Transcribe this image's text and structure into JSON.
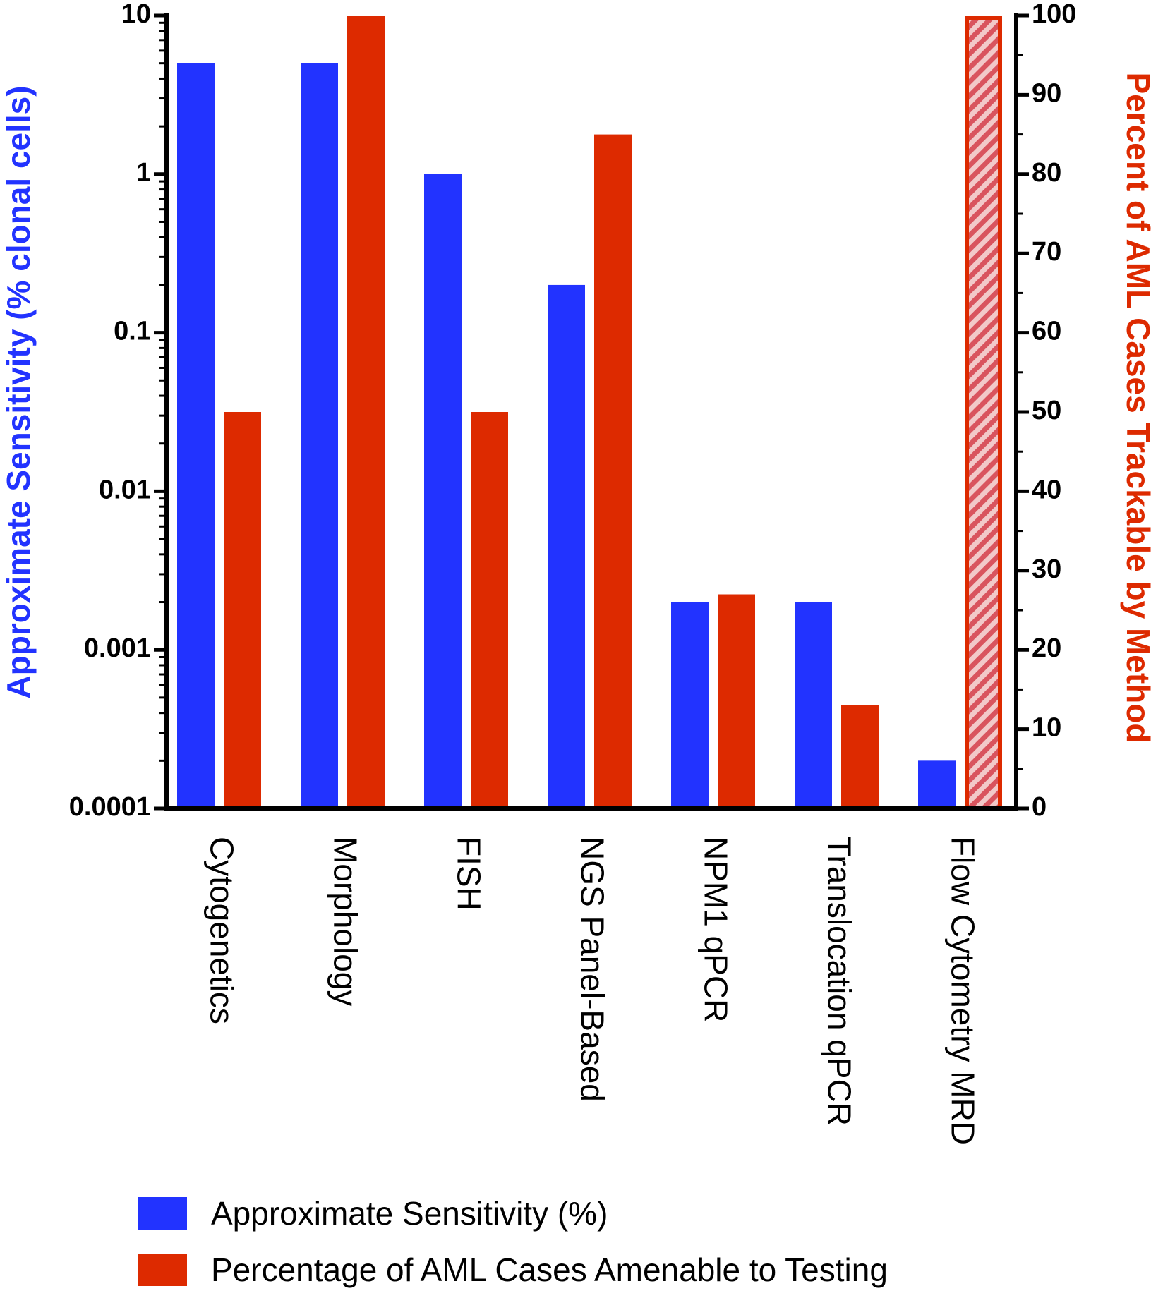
{
  "chart_data": {
    "type": "bar",
    "categories": [
      "Cytogenetics",
      "Morphology",
      "FISH",
      "NGS Panel-Based",
      "NPM1 qPCR",
      "Translocation qPCR",
      "Flow Cytometry MRD"
    ],
    "series": [
      {
        "name": "Approximate Sensitivity (%)",
        "axis": "left",
        "scale": "log",
        "color": "#2233ff",
        "values": [
          5,
          5,
          1,
          0.2,
          0.002,
          0.002,
          0.0002
        ]
      },
      {
        "name": "Percentage of AML Cases Amenable to Testing",
        "axis": "right",
        "scale": "linear",
        "color": "#dd2a00",
        "values": [
          50,
          100,
          50,
          85,
          27,
          13,
          100
        ],
        "hatched_index": 6
      }
    ],
    "left_axis": {
      "label": "Approximate Sensitivity (% clonal cells)",
      "ticks": [
        "10",
        "1",
        "0.1",
        "0.01",
        "0.001",
        "0.0001"
      ],
      "ylim": [
        0.0001,
        10
      ],
      "color": "#2233ff"
    },
    "right_axis": {
      "label": "Percent of AML Cases Trackable by Method",
      "ticks": [
        "100",
        "90",
        "80",
        "70",
        "60",
        "50",
        "40",
        "30",
        "20",
        "10",
        "0"
      ],
      "ylim": [
        0,
        100
      ],
      "color": "#dd2a00"
    },
    "legend": {
      "position": "bottom-left",
      "items": [
        "Approximate Sensitivity (%)",
        "Percentage of AML Cases Amenable to Testing"
      ]
    }
  }
}
